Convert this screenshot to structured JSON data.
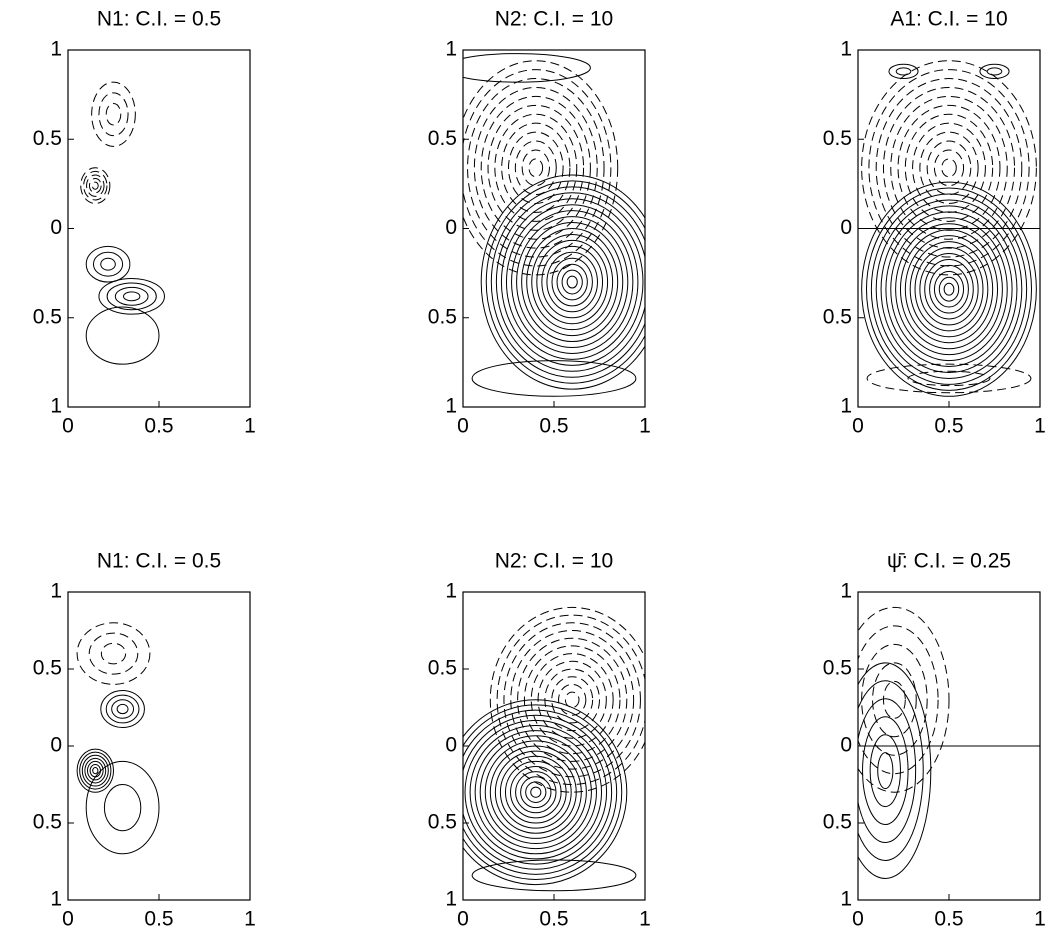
{
  "chart_data": [
    {
      "type": "contour",
      "title": "N1: C.I. = 0.5",
      "xlim": [
        0,
        1
      ],
      "ylim": [
        -1,
        1
      ],
      "xticks": [
        0,
        0.5,
        1
      ],
      "yticks": [
        {
          "value": -1,
          "label": "1"
        },
        {
          "value": -0.5,
          "label": "0.5"
        },
        0,
        0.5,
        1
      ]
    },
    {
      "type": "contour",
      "title": "N2: C.I. = 10",
      "xlim": [
        0,
        1
      ],
      "ylim": [
        -1,
        1
      ],
      "xticks": [
        0,
        0.5,
        1
      ],
      "yticks": [
        {
          "value": -1,
          "label": "1"
        },
        {
          "value": -0.5,
          "label": "0.5"
        },
        0,
        0.5,
        1
      ]
    },
    {
      "type": "contour",
      "title": "A1: C.I. = 10",
      "xlim": [
        0,
        1
      ],
      "ylim": [
        -1,
        1
      ],
      "xticks": [
        0,
        0.5,
        1
      ],
      "yticks": [
        {
          "value": -1,
          "label": "1"
        },
        {
          "value": -0.5,
          "label": "0.5"
        },
        0,
        0.5,
        1
      ]
    },
    {
      "type": "contour",
      "title": "N1: C.I. = 0.5",
      "xlim": [
        0,
        1
      ],
      "ylim": [
        -1,
        1
      ],
      "xticks": [
        0,
        0.5,
        1
      ],
      "yticks": [
        {
          "value": -1,
          "label": "1"
        },
        {
          "value": -0.5,
          "label": "0.5"
        },
        0,
        0.5,
        1
      ]
    },
    {
      "type": "contour",
      "title": "N2: C.I. = 10",
      "xlim": [
        0,
        1
      ],
      "ylim": [
        -1,
        1
      ],
      "xticks": [
        0,
        0.5,
        1
      ],
      "yticks": [
        {
          "value": -1,
          "label": "1"
        },
        {
          "value": -0.5,
          "label": "0.5"
        },
        0,
        0.5,
        1
      ]
    },
    {
      "type": "contour",
      "title": "ψ̄: C.I. = 0.25",
      "xlim": [
        0,
        1
      ],
      "ylim": [
        -1,
        1
      ],
      "xticks": [
        0,
        0.5,
        1
      ],
      "yticks": [
        {
          "value": -1,
          "label": "1"
        },
        {
          "value": -0.5,
          "label": "0.5"
        },
        0,
        0.5,
        1
      ]
    }
  ]
}
